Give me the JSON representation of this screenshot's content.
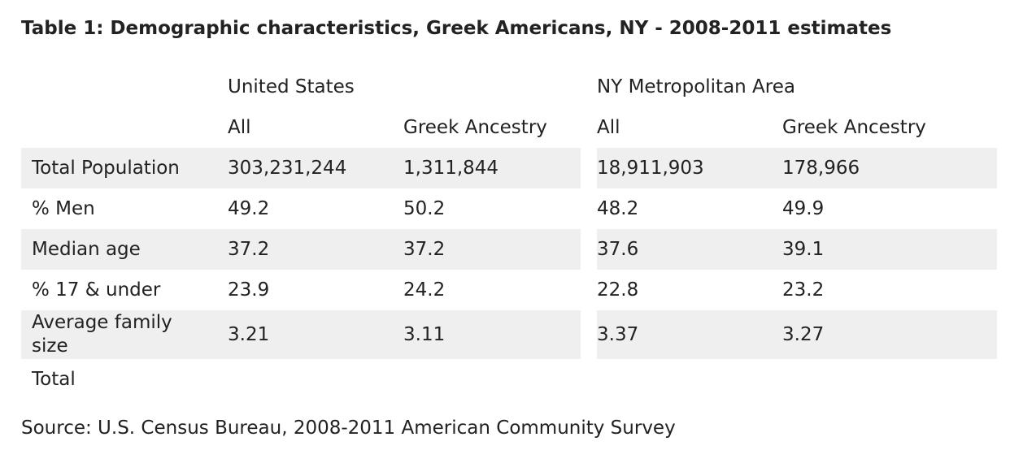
{
  "title": "Table 1: Demographic characteristics, Greek Americans, NY - 2008-2011 estimates",
  "group_headers": [
    "United States",
    "NY Metropolitan Area"
  ],
  "sub_headers": [
    "All",
    "Greek Ancestry",
    "All",
    "Greek Ancestry"
  ],
  "rows": [
    {
      "label": "Total Population",
      "values": [
        "303,231,244",
        "1,311,844",
        "18,911,903",
        "178,966"
      ]
    },
    {
      "label": "% Men",
      "values": [
        "49.2",
        "50.2",
        "48.2",
        "49.9"
      ]
    },
    {
      "label": "Median age",
      "values": [
        "37.2",
        "37.2",
        "37.6",
        "39.1"
      ]
    },
    {
      "label": "% 17 & under",
      "values": [
        "23.9",
        "24.2",
        "22.8",
        "23.2"
      ]
    },
    {
      "label": "Average family size",
      "values": [
        "3.21",
        "3.11",
        "3.37",
        "3.27"
      ]
    },
    {
      "label": "Total",
      "values": [
        "",
        "",
        "",
        ""
      ]
    }
  ],
  "source": "Source: U.S. Census Bureau, 2008-2011 American Community Survey",
  "colors": {
    "row_shade": "#efefef",
    "text": "#222222",
    "background": "#ffffff"
  }
}
